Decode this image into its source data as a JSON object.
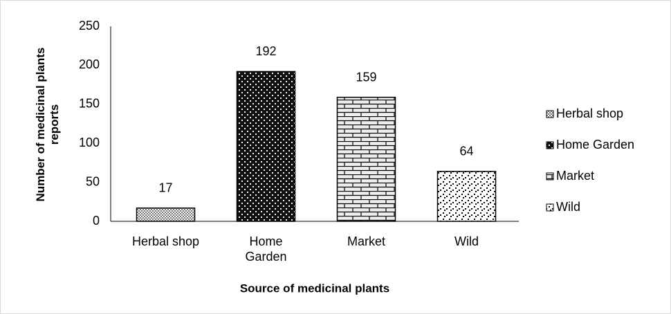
{
  "chart_data": {
    "type": "bar",
    "categories": [
      "Herbal shop",
      "Home Garden",
      "Market",
      "Wild"
    ],
    "values": [
      17,
      192,
      159,
      64
    ],
    "ylim": [
      0,
      250
    ],
    "yticks": [
      0,
      50,
      100,
      150,
      200,
      250
    ],
    "y_label": "Number of medicinal plants reports",
    "x_label": "Source of medicinal plants",
    "grid": false
  }
}
